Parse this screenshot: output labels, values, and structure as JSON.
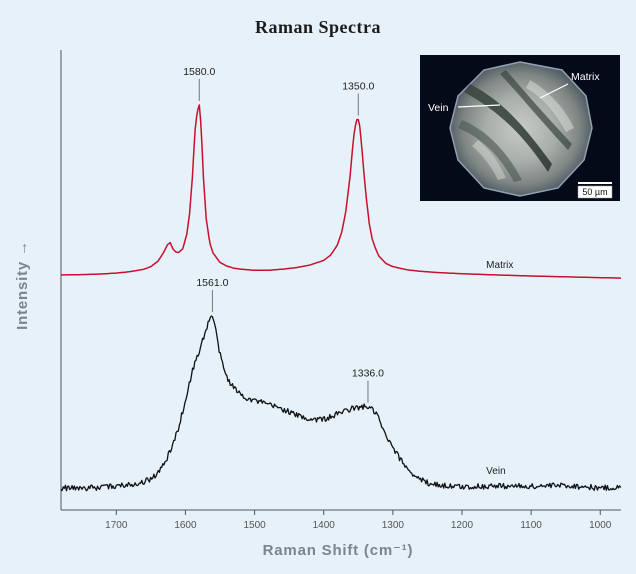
{
  "chart_data": {
    "type": "line",
    "title": "Raman Spectra",
    "xlabel": "Raman Shift (cm⁻¹)",
    "ylabel": "Intensity →",
    "xlim": [
      1780,
      970
    ],
    "xreverse": true,
    "yunits": "relative",
    "grid": false,
    "xticks": [
      1700,
      1600,
      1500,
      1400,
      1300,
      1200,
      1100,
      1000
    ],
    "series": [
      {
        "name": "Matrix",
        "color": "#c8102e",
        "x": [
          1780,
          1760,
          1740,
          1720,
          1700,
          1680,
          1660,
          1650,
          1640,
          1632,
          1626,
          1622,
          1618,
          1614,
          1610,
          1604,
          1598,
          1594,
          1590,
          1586,
          1583,
          1580,
          1577,
          1574,
          1570,
          1565,
          1560,
          1550,
          1540,
          1530,
          1520,
          1500,
          1480,
          1460,
          1440,
          1420,
          1400,
          1390,
          1380,
          1374,
          1368,
          1362,
          1358,
          1355,
          1352,
          1350,
          1348,
          1345,
          1342,
          1338,
          1334,
          1330,
          1325,
          1320,
          1310,
          1300,
          1280,
          1260,
          1240,
          1220,
          1200,
          1150,
          1100,
          1050,
          1000,
          970
        ],
        "values": [
          1.0,
          1.2,
          1.5,
          2.0,
          2.8,
          4.2,
          6.5,
          9.0,
          14.0,
          22.0,
          30.0,
          32.0,
          26.0,
          23.0,
          22.5,
          26.0,
          40.0,
          60.0,
          95.0,
          140.0,
          158.0,
          164.0,
          140.0,
          95.0,
          55.0,
          32.0,
          22.0,
          13.0,
          9.5,
          7.5,
          6.5,
          5.5,
          5.5,
          6.5,
          8.0,
          10.5,
          15.0,
          20.0,
          30.0,
          42.0,
          62.0,
          95.0,
          125.0,
          142.0,
          150.0,
          150.0,
          144.0,
          125.0,
          100.0,
          72.0,
          50.0,
          36.0,
          26.0,
          19.0,
          12.0,
          9.0,
          6.0,
          4.5,
          3.5,
          2.8,
          2.2,
          1.0,
          0.0,
          -0.8,
          -1.6,
          -2.0
        ]
      },
      {
        "name": "Vein",
        "color": "#111111",
        "x": [
          1780,
          1760,
          1740,
          1720,
          1700,
          1680,
          1660,
          1650,
          1640,
          1630,
          1620,
          1610,
          1600,
          1590,
          1580,
          1575,
          1570,
          1566,
          1563,
          1561,
          1558,
          1554,
          1548,
          1540,
          1530,
          1520,
          1510,
          1500,
          1480,
          1460,
          1440,
          1420,
          1400,
          1390,
          1380,
          1370,
          1360,
          1350,
          1343,
          1336,
          1330,
          1322,
          1315,
          1305,
          1295,
          1285,
          1275,
          1265,
          1250,
          1235,
          1220,
          1200,
          1150,
          1100,
          1050,
          1000,
          970
        ],
        "values": [
          0.0,
          0.0,
          0.0,
          0.5,
          2.0,
          3.5,
          6.0,
          9.0,
          14.0,
          24.0,
          38.0,
          58.0,
          84.0,
          112.0,
          132.0,
          142.0,
          152.0,
          160.0,
          165.0,
          165.0,
          158.0,
          142.0,
          122.0,
          106.0,
          96.0,
          90.0,
          86.0,
          84.0,
          80.0,
          76.0,
          70.0,
          66.0,
          66.0,
          68.0,
          71.0,
          74.0,
          76.0,
          77.0,
          78.0,
          78.0,
          75.0,
          70.0,
          56.0,
          44.0,
          33.0,
          24.0,
          16.0,
          10.0,
          5.0,
          3.0,
          2.0,
          1.0,
          2.0,
          1.5,
          2.5,
          0.0,
          0.5
        ]
      }
    ],
    "annotations": [
      {
        "series": "Matrix",
        "x": 1580,
        "label": "1580.0"
      },
      {
        "series": "Matrix",
        "x": 1350,
        "label": "1350.0"
      },
      {
        "series": "Vein",
        "x": 1561,
        "label": "1561.0"
      },
      {
        "series": "Vein",
        "x": 1336,
        "label": "1336.0"
      }
    ],
    "inset": {
      "labels": [
        "Vein",
        "Matrix"
      ],
      "scale_bar": "50 µm"
    }
  }
}
